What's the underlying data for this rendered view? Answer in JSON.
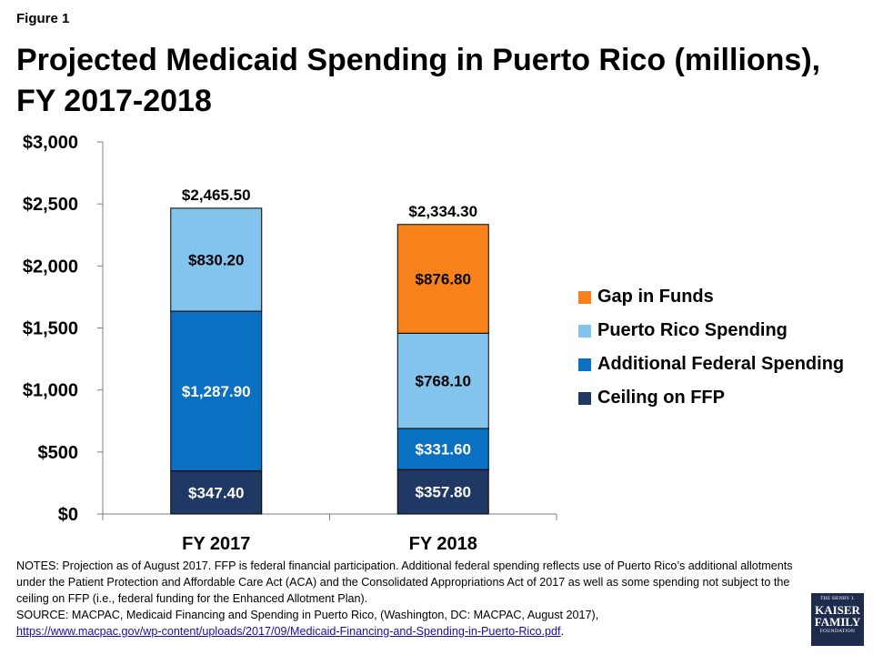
{
  "figure_label": "Figure 1",
  "title_line1": "Projected Medicaid Spending in Puerto Rico (millions),",
  "title_line2": "FY 2017-2018",
  "chart_data": {
    "type": "bar",
    "stacked": true,
    "categories": [
      "FY 2017",
      "FY 2018"
    ],
    "ylim": [
      0,
      3000
    ],
    "yticks": [
      0,
      500,
      1000,
      1500,
      2000,
      2500,
      3000
    ],
    "ytick_labels": [
      "$0",
      "$500",
      "$1,000",
      "$1,500",
      "$2,000",
      "$2,500",
      "$3,000"
    ],
    "legend_position": "right",
    "grid": false,
    "series": [
      {
        "name": "Ceiling on FFP",
        "color": "#1f3864",
        "values": [
          347.4,
          357.8
        ],
        "labels": [
          "$347.40",
          "$357.80"
        ]
      },
      {
        "name": "Additional Federal Spending",
        "color": "#0a70c2",
        "values": [
          1287.9,
          331.6
        ],
        "labels": [
          "$1,287.90",
          "$331.60"
        ]
      },
      {
        "name": "Puerto Rico Spending",
        "color": "#82c4ec",
        "values": [
          830.2,
          768.1
        ],
        "labels": [
          "$830.20",
          "$768.10"
        ]
      },
      {
        "name": "Gap in Funds",
        "color": "#f7821b",
        "values": [
          0,
          876.8
        ],
        "labels": [
          "",
          "$876.80"
        ]
      }
    ],
    "totals": [
      2465.5,
      2334.3
    ],
    "total_labels": [
      "$2,465.50",
      "$2,334.30"
    ]
  },
  "legend_order": [
    {
      "name": "Gap in Funds",
      "color": "#f7821b"
    },
    {
      "name": "Puerto Rico Spending",
      "color": "#82c4ec"
    },
    {
      "name": "Additional Federal Spending",
      "color": "#0a70c2"
    },
    {
      "name": "Ceiling on FFP",
      "color": "#1f3864"
    }
  ],
  "notes": {
    "line1": "NOTES: Projection as of August 2017. FFP is federal financial participation. Additional federal spending reflects use of Puerto Rico’s additional allotments under the Patient Protection and Affordable Care Act (ACA) and the Consolidated Appropriations Act of 2017 as well as some spending not subject to the ceiling on FFP (i.e., federal funding for the Enhanced Allotment Plan).",
    "source": "SOURCE: MACPAC, Medicaid Financing and Spending in Puerto Rico, (Washington, DC: MACPAC, August 2017),",
    "url": "https://www.macpac.gov/wp-content/uploads/2017/09/Medicaid-Financing-and-Spending-in-Puerto-Rico.pdf",
    "url_suffix": "."
  },
  "logo": {
    "top": "THE HENRY J.",
    "line1": "KAISER",
    "line2": "FAMILY",
    "bottom": "FOUNDATION"
  }
}
